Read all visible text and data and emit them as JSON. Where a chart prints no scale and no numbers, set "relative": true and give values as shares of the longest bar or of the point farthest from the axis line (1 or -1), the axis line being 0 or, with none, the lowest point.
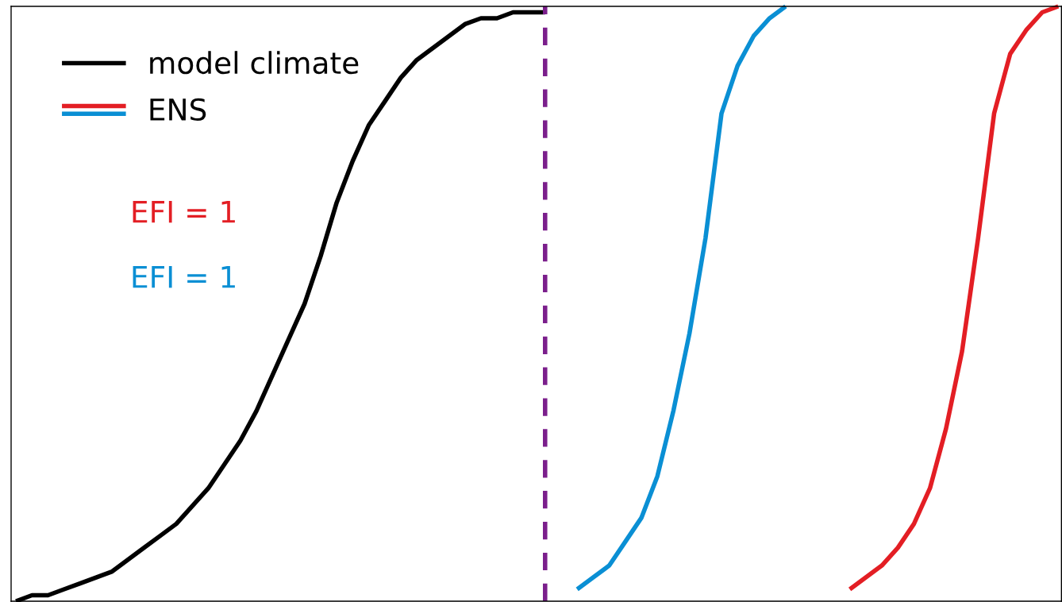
{
  "chart_data": {
    "type": "line",
    "relative": true,
    "categories": [
      null,
      null,
      null,
      null,
      null,
      null,
      null,
      null,
      null,
      null,
      null,
      null,
      null,
      null,
      null,
      null,
      null,
      null,
      null,
      null,
      null,
      null,
      null,
      null,
      null,
      null,
      null,
      null,
      null,
      null,
      null,
      null,
      null,
      null,
      null,
      null,
      null,
      null,
      null,
      null,
      null,
      null,
      null,
      null,
      null,
      null,
      null,
      null,
      null,
      null,
      null,
      null,
      null,
      null,
      null,
      null,
      null,
      null,
      null,
      null,
      null,
      null,
      null,
      null,
      null,
      null
    ],
    "series": [
      {
        "name": "model climate",
        "color": "#000000",
        "values": [
          0,
          0.01,
          0.01,
          0.02,
          0.03,
          0.04,
          0.05,
          0.07,
          0.09,
          0.11,
          0.13,
          0.16,
          0.19,
          0.23,
          0.27,
          0.32,
          0.38,
          0.44,
          0.5,
          0.58,
          0.67,
          0.74,
          0.8,
          0.84,
          0.88,
          0.91,
          0.93,
          0.95,
          0.97,
          0.98,
          0.98,
          0.99,
          0.99,
          0.99,
          null,
          null,
          null,
          null,
          null,
          null,
          null,
          null,
          null,
          null,
          null,
          null,
          null,
          null,
          null,
          null,
          null,
          null,
          null,
          null,
          null,
          null,
          null,
          null,
          null,
          null,
          null,
          null,
          null,
          null,
          null,
          null
        ]
      },
      {
        "name": "ENS",
        "color": "#e31e24",
        "values": [
          null,
          null,
          null,
          null,
          null,
          null,
          null,
          null,
          null,
          null,
          null,
          null,
          null,
          null,
          null,
          null,
          null,
          null,
          null,
          null,
          null,
          null,
          null,
          null,
          null,
          null,
          null,
          null,
          null,
          null,
          null,
          null,
          null,
          null,
          null,
          null,
          null,
          null,
          null,
          null,
          null,
          null,
          null,
          null,
          null,
          null,
          null,
          null,
          null,
          null,
          null,
          null,
          0.02,
          0.04,
          0.06,
          0.09,
          0.13,
          0.19,
          0.29,
          0.42,
          0.61,
          0.82,
          0.92,
          0.96,
          0.99,
          1.0
        ]
      },
      {
        "color": "#0a8fd4",
        "values": [
          null,
          null,
          null,
          null,
          null,
          null,
          null,
          null,
          null,
          null,
          null,
          null,
          null,
          null,
          null,
          null,
          null,
          null,
          null,
          null,
          null,
          null,
          null,
          null,
          null,
          null,
          null,
          null,
          null,
          null,
          null,
          null,
          null,
          null,
          null,
          0.02,
          0.04,
          0.06,
          0.1,
          0.14,
          0.21,
          0.32,
          0.45,
          0.61,
          0.82,
          0.9,
          0.95,
          0.98,
          1.0,
          null,
          null,
          null,
          null,
          null,
          null,
          null,
          null,
          null,
          null,
          null,
          null,
          null,
          null,
          null,
          null,
          null
        ]
      }
    ],
    "annotations": [
      "EFI = 1",
      "EFI = 1"
    ],
    "legend": "top left",
    "marker": "none",
    "line_style": "solid"
  }
}
